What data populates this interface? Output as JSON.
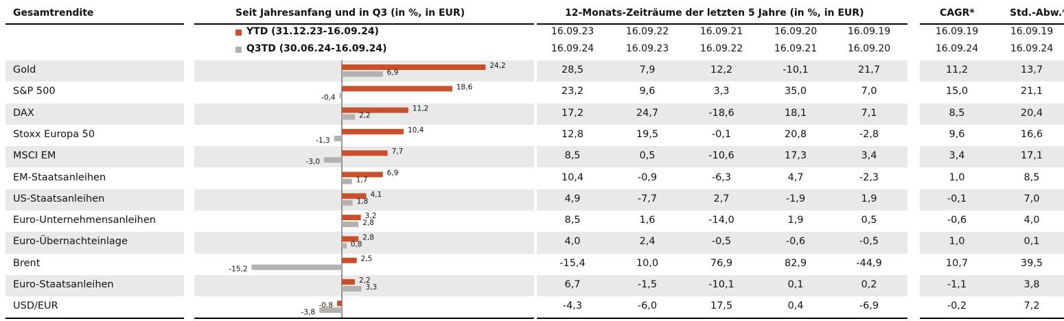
{
  "headers": {
    "label_col": "Gesamtrendite",
    "chart_col": "Seit Jahresanfang und in Q3 (in %, in EUR)",
    "periods_col": "12-Monats-Zeiträume der letzten 5 Jahre (in %, in EUR)",
    "cagr": "CAGR*",
    "std": "Std.-Abw.*"
  },
  "legend": {
    "ytd": "YTD (31.12.23-16.09.24)",
    "q3td": "Q3TD (30.06.24-16.09.24)",
    "ytd_color": "#c8502a",
    "q3td_color": "#b3b0ae"
  },
  "period_dates": {
    "start": [
      "16.09.23",
      "16.09.22",
      "16.09.21",
      "16.09.20",
      "16.09.19"
    ],
    "end": [
      "16.09.24",
      "16.09.23",
      "16.09.22",
      "16.09.21",
      "16.09.20"
    ]
  },
  "cagr_dates": {
    "start": "16.09.19",
    "end": "16.09.24"
  },
  "std_dates": {
    "start": "16.09.19",
    "end": "16.09.24"
  },
  "rows": [
    {
      "name": "Gold",
      "p": [
        "28,5",
        "7,9",
        "12,2",
        "-10,1",
        "21,7"
      ],
      "cagr": "11,2",
      "std": "13,7"
    },
    {
      "name": "S&P 500",
      "p": [
        "23,2",
        "9,6",
        "3,3",
        "35,0",
        "7,0"
      ],
      "cagr": "15,0",
      "std": "21,1"
    },
    {
      "name": "DAX",
      "p": [
        "17,2",
        "24,7",
        "-18,6",
        "18,1",
        "7,1"
      ],
      "cagr": "8,5",
      "std": "20,4"
    },
    {
      "name": "Stoxx Europa 50",
      "p": [
        "12,8",
        "19,5",
        "-0,1",
        "20,8",
        "-2,8"
      ],
      "cagr": "9,6",
      "std": "16,6"
    },
    {
      "name": "MSCI EM",
      "p": [
        "8,5",
        "0,5",
        "-10,6",
        "17,3",
        "3,4"
      ],
      "cagr": "3,4",
      "std": "17,1"
    },
    {
      "name": "EM-Staatsanleihen",
      "p": [
        "10,4",
        "-0,9",
        "-6,3",
        "4,7",
        "-2,3"
      ],
      "cagr": "1,0",
      "std": "8,5"
    },
    {
      "name": "US-Staatsanleihen",
      "p": [
        "4,9",
        "-7,7",
        "2,7",
        "-1,9",
        "1,9"
      ],
      "cagr": "-0,1",
      "std": "7,0"
    },
    {
      "name": "Euro-Unternehmensanleihen",
      "p": [
        "8,5",
        "1,6",
        "-14,0",
        "1,9",
        "0,5"
      ],
      "cagr": "-0,6",
      "std": "4,0"
    },
    {
      "name": "Euro-Übernachteinlage",
      "p": [
        "4,0",
        "2,4",
        "-0,5",
        "-0,6",
        "-0,5"
      ],
      "cagr": "1,0",
      "std": "0,1"
    },
    {
      "name": "Brent",
      "p": [
        "-15,4",
        "10,0",
        "76,9",
        "82,9",
        "-44,9"
      ],
      "cagr": "10,7",
      "std": "39,5"
    },
    {
      "name": "Euro-Staatsanleihen",
      "p": [
        "6,7",
        "-1,5",
        "-10,1",
        "0,1",
        "0,2"
      ],
      "cagr": "-1,1",
      "std": "3,8"
    },
    {
      "name": "USD/EUR",
      "p": [
        "-4,3",
        "-6,0",
        "17,5",
        "0,4",
        "-6,9"
      ],
      "cagr": "-0,2",
      "std": "7,2"
    }
  ],
  "chart_data": {
    "type": "bar",
    "orientation": "horizontal",
    "title": "Seit Jahresanfang und in Q3 (in %, in EUR)",
    "categories": [
      "Gold",
      "S&P 500",
      "DAX",
      "Stoxx Europa 50",
      "MSCI EM",
      "EM-Staatsanleihen",
      "US-Staatsanleihen",
      "Euro-Unternehmensanleihen",
      "Euro-Übernachteinlage",
      "Brent",
      "Euro-Staatsanleihen",
      "USD/EUR"
    ],
    "series": [
      {
        "name": "YTD (31.12.23-16.09.24)",
        "values": [
          24.2,
          18.6,
          11.2,
          10.4,
          7.7,
          6.9,
          4.1,
          3.2,
          2.8,
          2.5,
          2.2,
          -0.8
        ],
        "labels": [
          "24,2",
          "18,6",
          "11,2",
          "10,4",
          "7,7",
          "6,9",
          "4,1",
          "3,2",
          "2,8",
          "2,5",
          "2,2",
          "-0,8"
        ]
      },
      {
        "name": "Q3TD (30.06.24-16.09.24)",
        "values": [
          6.9,
          -0.4,
          2.2,
          -1.3,
          -3.0,
          1.7,
          1.8,
          2.8,
          0.8,
          -15.2,
          3.3,
          -3.8
        ],
        "labels": [
          "6,9",
          "-0,4",
          "2,2",
          "-1,3",
          "-3,0",
          "1,7",
          "1,8",
          "2,8",
          "0,8",
          "-15,2",
          "3,3",
          "-3,8"
        ]
      }
    ],
    "xlim": [
      -25,
      30
    ],
    "legend": "top-left"
  }
}
